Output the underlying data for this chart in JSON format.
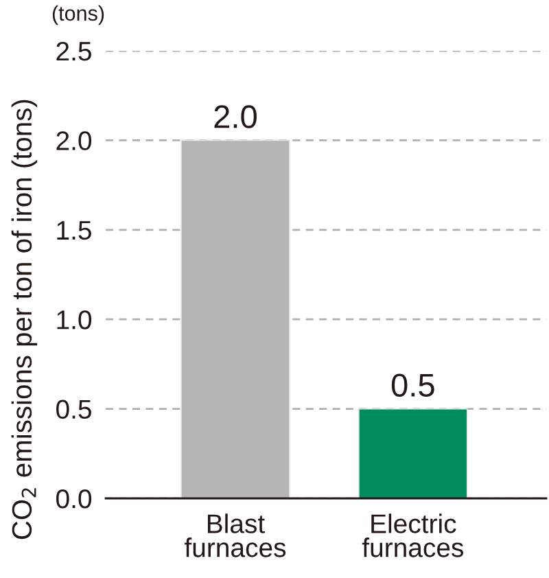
{
  "chart_data": {
    "type": "bar",
    "ylabel": "CO$_{2}$ emissions per ton of iron (tons)",
    "annotations": [
      "(tons)"
    ],
    "categories": [
      "Blast\nfurnaces",
      "Electric\nfurnaces"
    ],
    "values": [
      2.0,
      0.5
    ],
    "colors": [
      "#b4b5b4",
      "#008c5c"
    ],
    "value_labels": [
      "2.0",
      "0.5"
    ],
    "ylim": [
      0,
      2.5
    ],
    "yticks": [
      {
        "value": 0,
        "label": "0.0"
      },
      {
        "value": 0.5,
        "label": "0.5"
      },
      {
        "value": 1,
        "label": "1.0"
      },
      {
        "value": 1.5,
        "label": "1.5"
      },
      {
        "value": 2,
        "label": "2.0"
      },
      {
        "value": 2.5,
        "label": "2.5"
      }
    ],
    "grid": "y"
  }
}
